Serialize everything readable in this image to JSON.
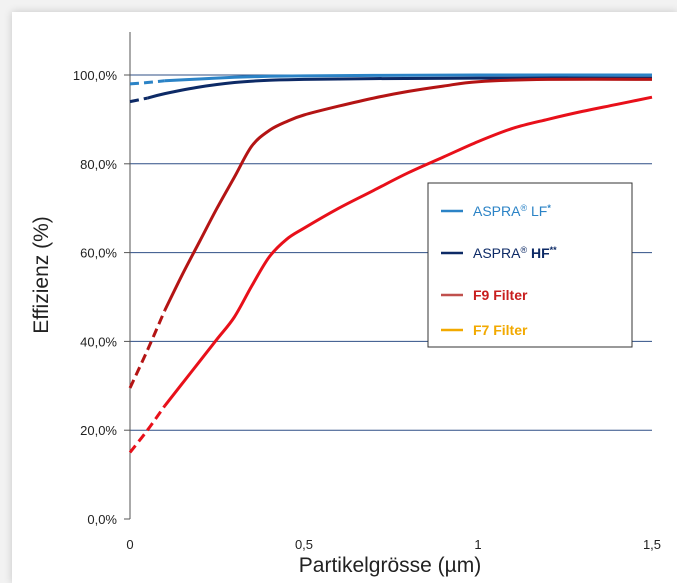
{
  "chart_data": {
    "type": "line",
    "title": "",
    "xlabel": "Partikelgrösse (µm)",
    "ylabel": "Effizienz (%)",
    "xlim": [
      0,
      1.5
    ],
    "ylim": [
      0,
      100
    ],
    "x_ticks": [
      {
        "value": 0,
        "label": "0"
      },
      {
        "value": 0.5,
        "label": "0,5"
      },
      {
        "value": 1,
        "label": "1"
      },
      {
        "value": 1.5,
        "label": "1,5"
      }
    ],
    "y_ticks": [
      {
        "value": 0,
        "label": "0,0%"
      },
      {
        "value": 20,
        "label": "20,0%"
      },
      {
        "value": 40,
        "label": "40,0%"
      },
      {
        "value": 60,
        "label": "60,0%"
      },
      {
        "value": 80,
        "label": "80,0%"
      },
      {
        "value": 100,
        "label": "100,0%"
      }
    ],
    "grid": "horizontal",
    "legend_position": "right",
    "series": [
      {
        "name": "ASPRA® LF*",
        "legend_text": "ASPRA",
        "legend_reg": "®",
        "legend_suffix": " LF",
        "legend_sup": "*",
        "color": "#2b83c6",
        "x": [
          0,
          0.05,
          0.1,
          0.2,
          0.3,
          0.4,
          0.5,
          0.7,
          1.0,
          1.5
        ],
        "y": [
          98.0,
          98.3,
          98.7,
          99.1,
          99.5,
          99.7,
          99.8,
          99.9,
          100.0,
          100.0
        ],
        "dashed_until_x": 0.07
      },
      {
        "name": "ASPRA® HF**",
        "legend_text": "ASPRA",
        "legend_reg": "®",
        "legend_suffix": " HF",
        "legend_sup": "**",
        "color": "#0d2a66",
        "x": [
          0,
          0.05,
          0.1,
          0.2,
          0.3,
          0.4,
          0.5,
          0.7,
          1.0,
          1.5
        ],
        "y": [
          94.0,
          94.8,
          95.8,
          97.3,
          98.3,
          98.8,
          99.0,
          99.2,
          99.3,
          99.3
        ],
        "dashed_until_x": 0.05
      },
      {
        "name": "F9 Filter",
        "legend_text": "F9 Filter",
        "color": "#b41414",
        "legend_color": "#c0504d",
        "label_color": "#c81e1e",
        "x": [
          0,
          0.05,
          0.1,
          0.15,
          0.2,
          0.25,
          0.3,
          0.35,
          0.4,
          0.45,
          0.5,
          0.6,
          0.7,
          0.8,
          0.9,
          1.0,
          1.2,
          1.5
        ],
        "y": [
          29.5,
          38.0,
          47.0,
          55.0,
          62.5,
          70.0,
          77.0,
          84.0,
          87.5,
          89.5,
          91.0,
          93.0,
          94.8,
          96.3,
          97.5,
          98.5,
          99.0,
          99.0
        ],
        "dashed_until_x": 0.1
      },
      {
        "name": "F7 Filter",
        "legend_text": "F7 Filter",
        "color": "#e8101a",
        "legend_color": "#f2a900",
        "label_color": "#f2a900",
        "x": [
          0,
          0.05,
          0.1,
          0.15,
          0.2,
          0.25,
          0.3,
          0.35,
          0.4,
          0.45,
          0.5,
          0.6,
          0.7,
          0.8,
          0.9,
          1.0,
          1.1,
          1.2,
          1.3,
          1.4,
          1.5
        ],
        "y": [
          15.0,
          20.0,
          25.5,
          30.5,
          35.5,
          40.5,
          45.5,
          52.5,
          59.0,
          63.0,
          65.5,
          70.0,
          74.0,
          78.0,
          81.5,
          85.0,
          88.0,
          90.0,
          91.8,
          93.4,
          95.0
        ],
        "dashed_until_x": 0.07
      }
    ]
  }
}
